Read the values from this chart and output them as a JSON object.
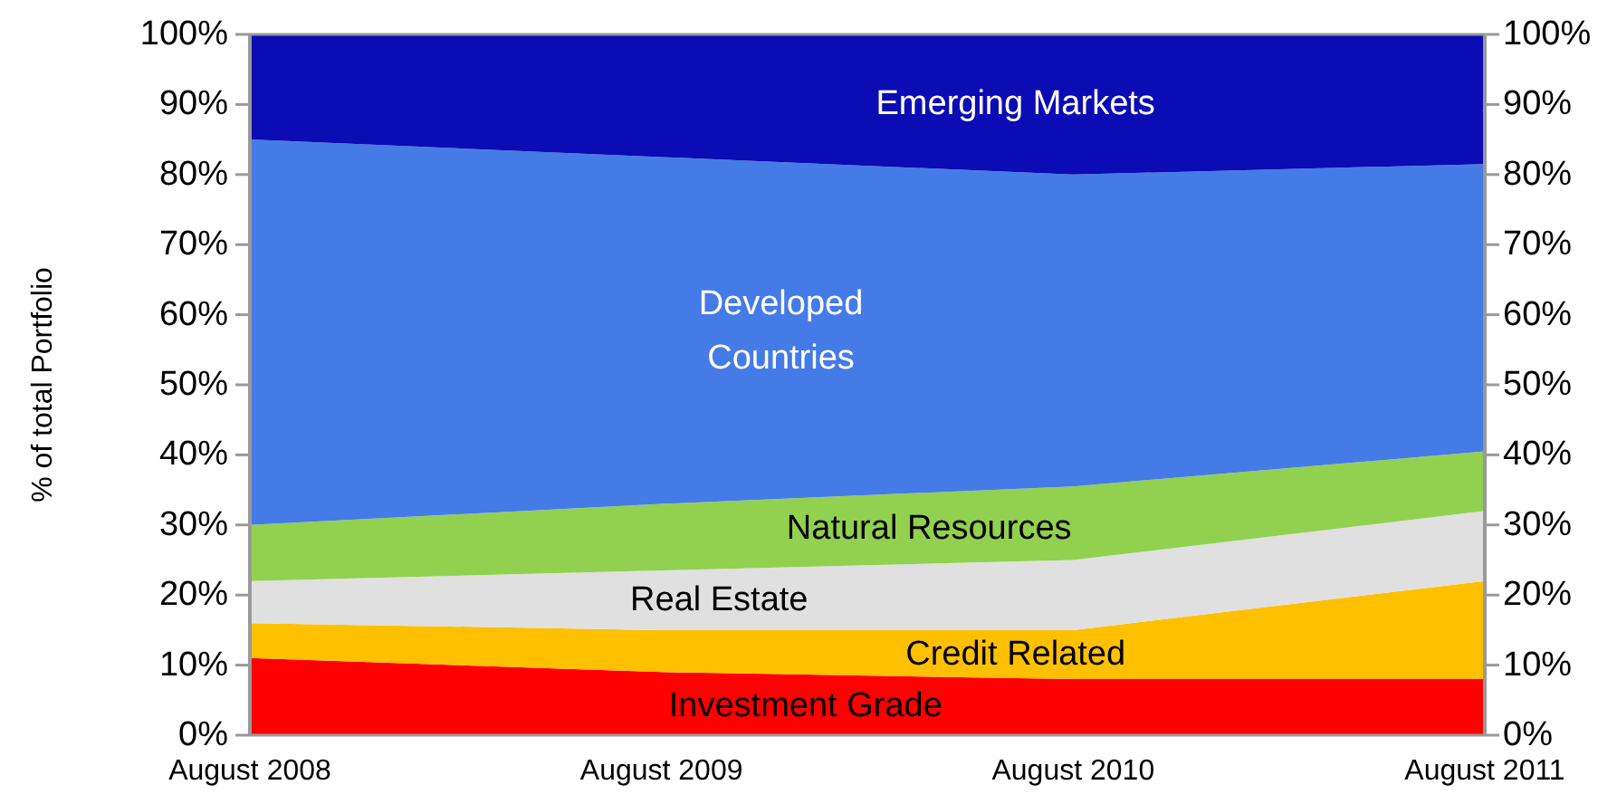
{
  "chart_data": {
    "type": "area",
    "stacked": true,
    "ylabel": "% of total Portfolio",
    "x": [
      "2008-08",
      "2009-08",
      "2010-08",
      "2011-08"
    ],
    "xlim": [
      "2008-08",
      "2011-08"
    ],
    "xticks": [
      {
        "value": "2008-08",
        "label": "August 2008"
      },
      {
        "value": "2009-08",
        "label": "August 2009"
      },
      {
        "value": "2010-08",
        "label": "August 2010"
      },
      {
        "value": "2011-08",
        "label": "August 2011"
      }
    ],
    "ylim": [
      0,
      100
    ],
    "yticks": [
      {
        "value": 0,
        "label": "0%"
      },
      {
        "value": 10,
        "label": "10%"
      },
      {
        "value": 20,
        "label": "20%"
      },
      {
        "value": 30,
        "label": "30%"
      },
      {
        "value": 40,
        "label": "40%"
      },
      {
        "value": 50,
        "label": "50%"
      },
      {
        "value": 60,
        "label": "60%"
      },
      {
        "value": 70,
        "label": "70%"
      },
      {
        "value": 80,
        "label": "80%"
      },
      {
        "value": 90,
        "label": "90%"
      },
      {
        "value": 100,
        "label": "100%"
      }
    ],
    "y2lim": [
      0,
      100
    ],
    "y2ticks": [
      {
        "value": 0,
        "label": "0%"
      },
      {
        "value": 10,
        "label": "10%"
      },
      {
        "value": 20,
        "label": "20%"
      },
      {
        "value": 30,
        "label": "30%"
      },
      {
        "value": 40,
        "label": "40%"
      },
      {
        "value": 50,
        "label": "50%"
      },
      {
        "value": 60,
        "label": "60%"
      },
      {
        "value": 70,
        "label": "70%"
      },
      {
        "value": 80,
        "label": "80%"
      },
      {
        "value": 90,
        "label": "90%"
      },
      {
        "value": 100,
        "label": "100%"
      }
    ],
    "grid": false,
    "series": [
      {
        "name": "Investment Grade",
        "color": "#ff0000",
        "values": [
          11,
          9,
          8,
          8
        ]
      },
      {
        "name": "Credit Related",
        "color": "#ffc000",
        "values": [
          5,
          6,
          7,
          14
        ]
      },
      {
        "name": "Real Estate",
        "color": "#e0e0e0",
        "values": [
          6,
          8.5,
          10,
          10
        ]
      },
      {
        "name": "Natural Resources",
        "color": "#92d050",
        "values": [
          8,
          9.5,
          10.5,
          8.5
        ]
      },
      {
        "name": "Developed Countries",
        "color": "#457be6",
        "values": [
          55,
          49.5,
          44.5,
          41
        ]
      },
      {
        "name": "Emerging Markets",
        "color": "#0c0cb4",
        "values": [
          15,
          17.5,
          20,
          18.5
        ]
      }
    ]
  }
}
